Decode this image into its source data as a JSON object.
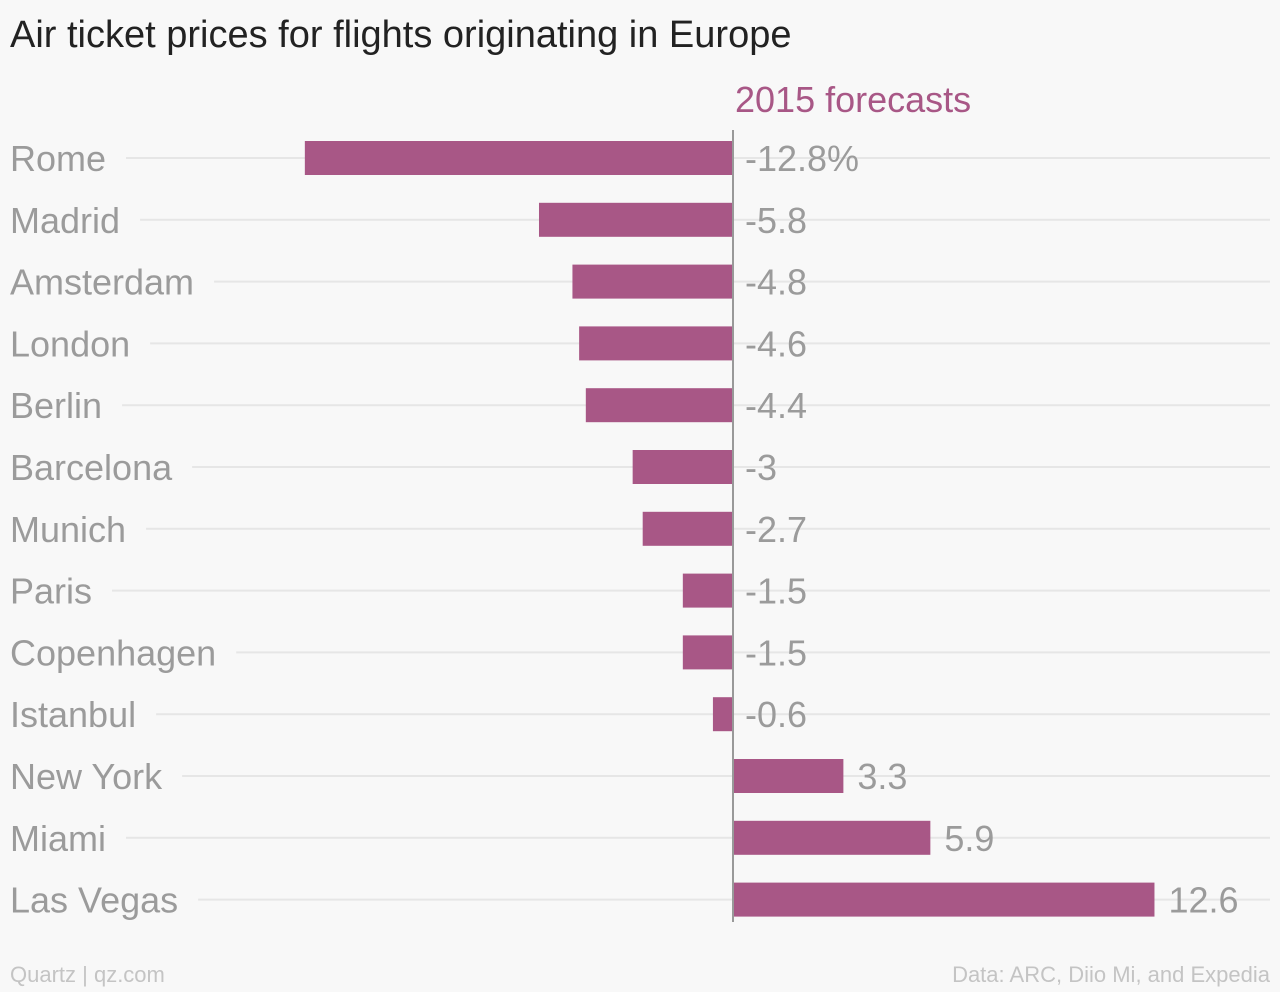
{
  "title": "Air ticket prices for flights originating in Europe",
  "footer": {
    "source_left": "Quartz | qz.com",
    "source_right": "Data: ARC, Diio Mi, and Expedia"
  },
  "colors": {
    "bar": "#a85786",
    "label": "#9b9b9b",
    "grid": "#e6e6e6",
    "axis": "#999999"
  },
  "chart_data": {
    "type": "bar",
    "orientation": "horizontal",
    "title": "Air ticket prices for flights originating in Europe",
    "categories": [
      "Rome",
      "Madrid",
      "Amsterdam",
      "London",
      "Berlin",
      "Barcelona",
      "Munich",
      "Paris",
      "Copenhagen",
      "Istanbul",
      "New York",
      "Miami",
      "Las Vegas"
    ],
    "series": [
      {
        "name": "2015 forecasts",
        "values": [
          -12.8,
          -5.8,
          -4.8,
          -4.6,
          -4.4,
          -3,
          -2.7,
          -1.5,
          -1.5,
          -0.6,
          3.3,
          5.9,
          12.6
        ],
        "value_labels": [
          "-12.8%",
          "-5.8",
          "-4.8",
          "-4.6",
          "-4.4",
          "-3",
          "-2.7",
          "-1.5",
          "-1.5",
          "-0.6",
          "3.3",
          "5.9",
          "12.6"
        ]
      }
    ],
    "xlim": [
      -12.8,
      12.6
    ],
    "grid": true,
    "legend": "none"
  }
}
